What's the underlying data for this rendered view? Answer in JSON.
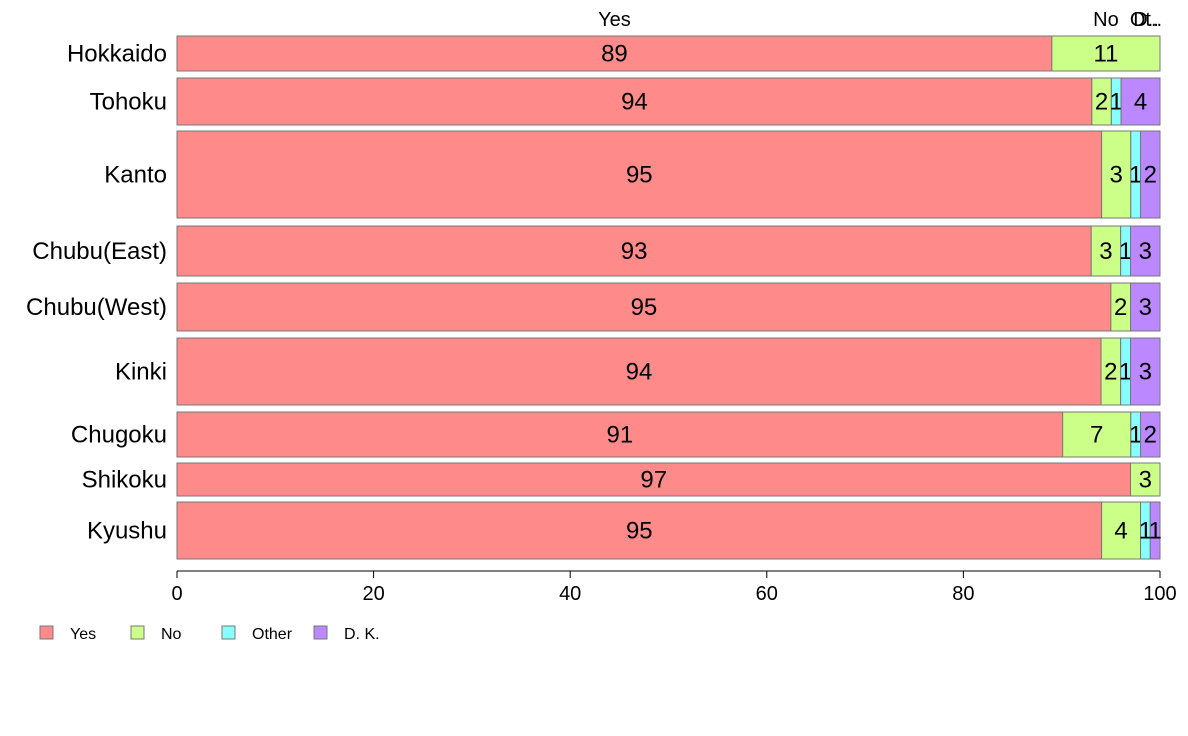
{
  "chart_data": {
    "type": "bar",
    "orientation": "horizontal",
    "stacked": true,
    "categories": [
      "Hokkaido",
      "Tohoku",
      "Kanto",
      "Chubu(East)",
      "Chubu(West)",
      "Kinki",
      "Chugoku",
      "Shikoku",
      "Kyushu"
    ],
    "series": [
      {
        "name": "Yes",
        "color": "#FF8A8A",
        "values": [
          89,
          94,
          95,
          93,
          95,
          94,
          91,
          97,
          95
        ]
      },
      {
        "name": "No",
        "color": "#CCFF88",
        "values": [
          11,
          2,
          3,
          3,
          2,
          2,
          7,
          3,
          4
        ]
      },
      {
        "name": "Other",
        "color": "#88FFFF",
        "values": [
          0,
          1,
          1,
          1,
          0,
          1,
          1,
          0,
          1
        ]
      },
      {
        "name": "D. K.",
        "color": "#BB88FF",
        "values": [
          0,
          4,
          2,
          3,
          3,
          3,
          2,
          0,
          1
        ]
      }
    ],
    "top_labels": [
      "Yes",
      "No",
      "Ot..",
      "D.."
    ],
    "xlim": [
      0,
      100
    ],
    "xticks": [
      0,
      20,
      40,
      60,
      80,
      100
    ],
    "legend": "bottom-left",
    "grid": false
  }
}
